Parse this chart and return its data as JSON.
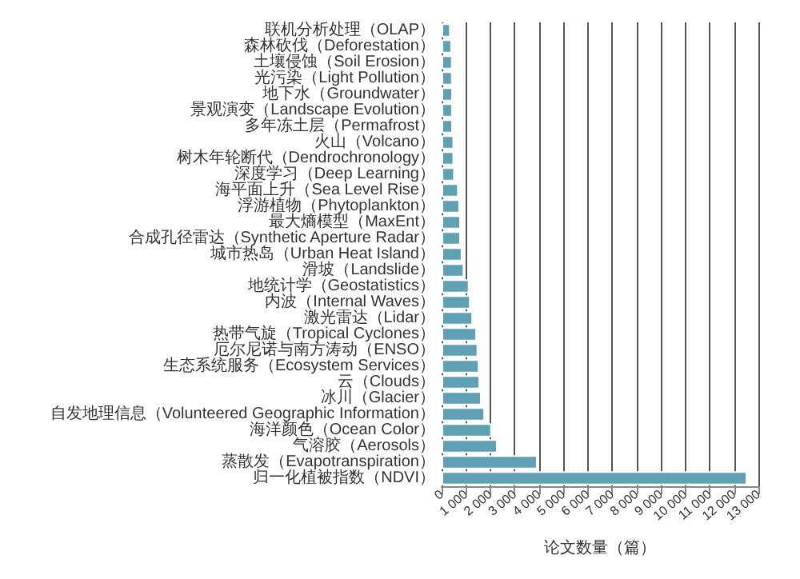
{
  "chart_data": {
    "type": "bar",
    "orientation": "horizontal",
    "xlabel": "论文数量（篇）",
    "categories": [
      "联机分析处理（OLAP）",
      "森林砍伐（Deforestation）",
      "土壤侵蚀（Soil Erosion）",
      "光污染（Light Pollution）",
      "地下水（Groundwater）",
      "景观演变（Landscape Evolution）",
      "多年冻土层（Permafrost）",
      "火山（Volcano）",
      "树木年轮断代（Dendrochronology）",
      "深度学习（Deep Learning）",
      "海平面上升（Sea Level Rise）",
      "浮游植物（Phytoplankton）",
      "最大熵模型（MaxEnt）",
      "合成孔径雷达（Synthetic Aperture Radar）",
      "城市热岛（Urban Heat Island）",
      "滑坡（Landslide）",
      "地统计学（Geostatistics）",
      "内波（Internal Waves）",
      "激光雷达（Lidar）",
      "热带气旋（Tropical Cyclones）",
      "厄尔尼诺与南方涛动（ENSO）",
      "生态系统服务（Ecosystem Services）",
      "云（Clouds）",
      "冰川（Glacier）",
      "自发地理信息（Volunteered Geographic Information）",
      "海洋颜色（Ocean Color）",
      "气溶胶（Aerosols）",
      "蒸散发（Evapotranspiration）",
      "归一化植被指数（NDVI）"
    ],
    "values": [
      370,
      420,
      450,
      450,
      460,
      460,
      460,
      510,
      510,
      540,
      700,
      750,
      790,
      790,
      850,
      930,
      1140,
      1190,
      1290,
      1450,
      1500,
      1550,
      1580,
      1640,
      1780,
      2060,
      2300,
      3940,
      12540
    ],
    "color": "#5fa0b2",
    "xlim": [
      0,
      13000
    ],
    "xticks": [
      0,
      {
        "value": 1000,
        "label": "1 000"
      },
      {
        "value": 2000,
        "label": "2 000"
      },
      {
        "value": 3000,
        "label": "3 000"
      },
      {
        "value": 4000,
        "label": "4 000"
      },
      {
        "value": 5000,
        "label": "5 000"
      },
      {
        "value": 6000,
        "label": "6 000"
      },
      {
        "value": 7000,
        "label": "7 000"
      },
      {
        "value": 8000,
        "label": "8 000"
      },
      {
        "value": 9000,
        "label": "9 000"
      },
      {
        "value": 10000,
        "label": "10 000"
      },
      {
        "value": 11000,
        "label": "11 000"
      },
      {
        "value": 12000,
        "label": "12 000"
      },
      {
        "value": 13000,
        "label": "13 000"
      }
    ],
    "grid": "x"
  }
}
